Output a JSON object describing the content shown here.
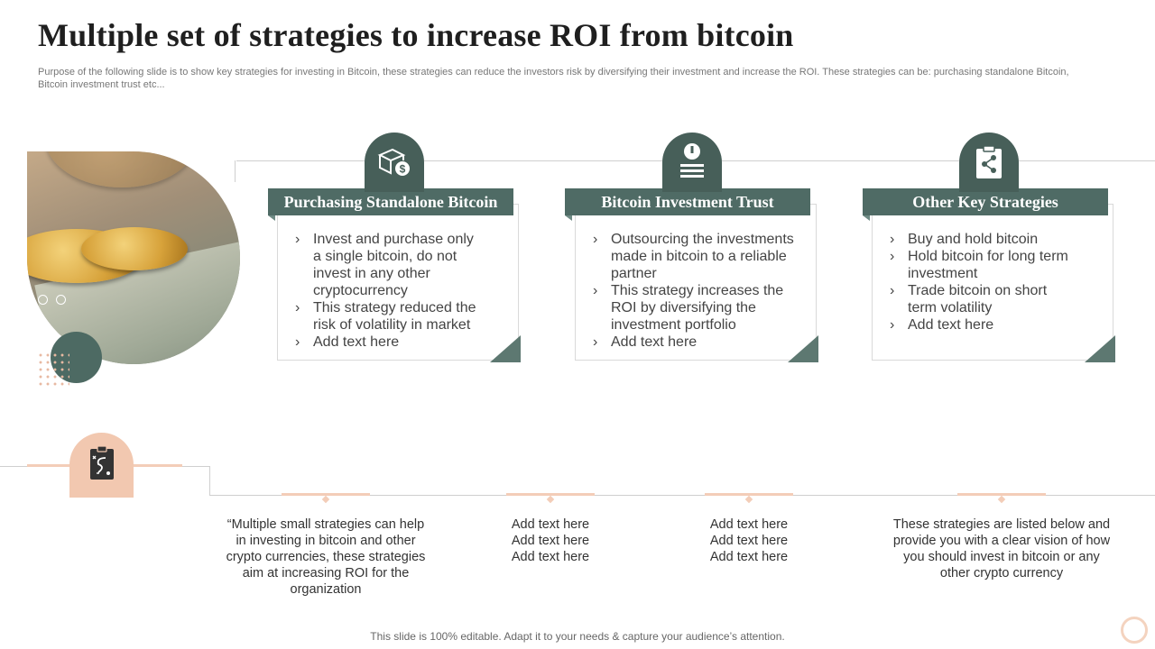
{
  "slide": {
    "title": "Multiple set of  strategies to increase ROI from bitcoin",
    "subtitle": "Purpose of the following slide is to show key strategies for investing in Bitcoin, these strategies can reduce the investors risk by diversifying their investment and increase the ROI. These strategies can be: purchasing standalone Bitcoin, Bitcoin investment trust etc..."
  },
  "cards": [
    {
      "icon": "box-dollar-icon",
      "title": "Purchasing Standalone Bitcoin",
      "bullets": [
        "Invest and purchase only a single bitcoin, do not invest in any other cryptocurrency",
        "This strategy reduced the risk of volatility  in market",
        "Add text here"
      ]
    },
    {
      "icon": "info-icon",
      "title": "Bitcoin Investment Trust",
      "bullets": [
        "Outsourcing the investments made in bitcoin to a reliable partner",
        "This strategy increases the ROI by diversifying the investment  portfolio",
        "Add text here"
      ]
    },
    {
      "icon": "clipboard-share-icon",
      "title": "Other Key Strategies",
      "bullets": [
        "Buy and hold bitcoin",
        "Hold bitcoin for long term investment",
        "Trade bitcoin on short  term volatility",
        "Add text here"
      ]
    }
  ],
  "bottom": {
    "icon": "strategy-board-icon",
    "texts": [
      "“Multiple small strategies can help in investing in bitcoin and other crypto currencies, these strategies aim at increasing ROI for the organization",
      "Add text here\nAdd text here\nAdd text here",
      "Add text here\nAdd text here\nAdd text here",
      "These strategies are listed below and provide you with a clear vision of how you should invest in bitcoin or any other crypto currency"
    ]
  },
  "footer": "This slide is 100% editable. Adapt it to your needs & capture your audience’s attention.",
  "colors": {
    "accent_green": "#4f6b65",
    "accent_peach": "#f2c8b0"
  }
}
